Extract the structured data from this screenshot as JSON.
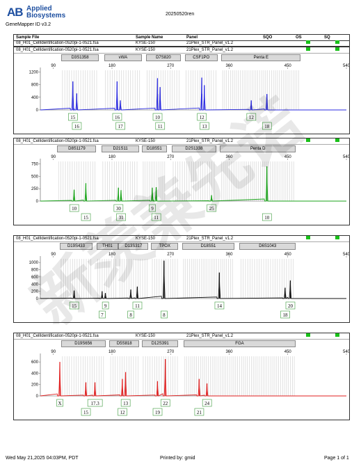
{
  "header": {
    "logo_mark": "AB",
    "logo_line1": "Applied",
    "logo_line2": "Biosystems",
    "software": "GeneMapper ID v3.2",
    "report_title": "20250520ren",
    "columns": [
      "Sample File",
      "Sample Name",
      "Panel",
      "SQO",
      "OS",
      "SQ"
    ],
    "row": {
      "sample_file": "08_H01_CellIdentification-0520pi-1-0521.fsa",
      "sample_name": "KYSE-150",
      "panel": "21Plex_STR_Panel_v1.2"
    }
  },
  "colors": {
    "blue": "#2a2ae0",
    "green": "#1aa31a",
    "black": "#111111",
    "red": "#e01e1e",
    "quality_ok": "#19c019",
    "bin_line": "#cfcfcf",
    "allele_box": "#3a9a3a"
  },
  "chart_data": [
    {
      "type": "line",
      "dye": "blue",
      "sample_file": "08_H01_CellIdentification-0520pi-1-0521.fsa",
      "sample_name": "KYSE-150",
      "panel": "21Plex_STR_Panel_v1.2",
      "markers": [
        {
          "name": "D3S1358",
          "start": 102,
          "end": 160
        },
        {
          "name": "vWA",
          "start": 168,
          "end": 226
        },
        {
          "name": "D7S820",
          "start": 232,
          "end": 286
        },
        {
          "name": "CSF1PO",
          "start": 292,
          "end": 342
        },
        {
          "name": "Penta E",
          "start": 348,
          "end": 470
        }
      ],
      "x_ticks": [
        90,
        180,
        270,
        360,
        450,
        540
      ],
      "xlim": [
        70,
        540
      ],
      "y_ticks": [
        0,
        400,
        800,
        1200
      ],
      "ylim": [
        0,
        1250
      ],
      "peaks": [
        {
          "x": 120,
          "height": 900,
          "allele": "15"
        },
        {
          "x": 126,
          "height": 520,
          "allele": "16"
        },
        {
          "x": 188,
          "height": 900,
          "allele": "16"
        },
        {
          "x": 193,
          "height": 300,
          "allele": "17"
        },
        {
          "x": 250,
          "height": 1000,
          "allele": "10"
        },
        {
          "x": 254,
          "height": 720,
          "allele": "11"
        },
        {
          "x": 318,
          "height": 1020,
          "allele": "12"
        },
        {
          "x": 322,
          "height": 780,
          "allele": "13"
        },
        {
          "x": 394,
          "height": 300,
          "allele": "12"
        },
        {
          "x": 418,
          "height": 500,
          "allele": "18"
        }
      ]
    },
    {
      "type": "line",
      "dye": "green",
      "sample_file": "08_H01_CellIdentification-0520pi-1-0521.fsa",
      "sample_name": "KYSE-150",
      "panel": "21Plex_STR_Panel_v1.2",
      "markers": [
        {
          "name": "D8S1179",
          "start": 96,
          "end": 156
        },
        {
          "name": "D21S11",
          "start": 164,
          "end": 222
        },
        {
          "name": "D18S51",
          "start": 226,
          "end": 264
        },
        {
          "name": "D2S1338",
          "start": 272,
          "end": 340
        },
        {
          "name": "Penta D",
          "start": 346,
          "end": 462
        }
      ],
      "x_ticks": [
        90,
        180,
        270,
        360,
        450,
        540
      ],
      "xlim": [
        70,
        540
      ],
      "y_ticks": [
        0,
        250,
        500,
        750
      ],
      "ylim": [
        0,
        800
      ],
      "peaks": [
        {
          "x": 122,
          "height": 230,
          "allele": "10"
        },
        {
          "x": 140,
          "height": 360,
          "allele": "15"
        },
        {
          "x": 190,
          "height": 270,
          "allele": "30"
        },
        {
          "x": 194,
          "height": 220,
          "allele": "31"
        },
        {
          "x": 242,
          "height": 270,
          "allele": "9"
        },
        {
          "x": 248,
          "height": 280,
          "allele": "11"
        },
        {
          "x": 333,
          "height": 120,
          "allele": "25"
        },
        {
          "x": 418,
          "height": 700,
          "allele": "10"
        }
      ]
    },
    {
      "type": "line",
      "dye": "black",
      "sample_file": "08_H01_CellIdentification-0520pi-1-0521.fsa",
      "sample_name": "KYSE-150",
      "panel": "21Plex_STR_Panel_v1.2",
      "markers": [
        {
          "name": "D19S433",
          "start": 100,
          "end": 150
        },
        {
          "name": "TH01",
          "start": 156,
          "end": 190
        },
        {
          "name": "D13S317",
          "start": 190,
          "end": 236
        },
        {
          "name": "TPOX",
          "start": 240,
          "end": 282
        },
        {
          "name": "D18S51",
          "start": 288,
          "end": 368
        },
        {
          "name": "D6S1043",
          "start": 376,
          "end": 462
        }
      ],
      "x_ticks": [
        90,
        180,
        270,
        360,
        450,
        540
      ],
      "xlim": [
        70,
        540
      ],
      "y_ticks": [
        0,
        200,
        400,
        600,
        800,
        1000
      ],
      "ylim": [
        0,
        1100
      ],
      "peaks": [
        {
          "x": 122,
          "height": 220,
          "allele": "15"
        },
        {
          "x": 165,
          "height": 200,
          "allele": "7"
        },
        {
          "x": 170,
          "height": 150,
          "allele": "9"
        },
        {
          "x": 209,
          "height": 250,
          "allele": "8"
        },
        {
          "x": 219,
          "height": 330,
          "allele": "11"
        },
        {
          "x": 260,
          "height": 1050,
          "allele": "8"
        },
        {
          "x": 345,
          "height": 720,
          "allele": "14"
        },
        {
          "x": 446,
          "height": 300,
          "allele": "18"
        },
        {
          "x": 454,
          "height": 500,
          "allele": "20"
        }
      ]
    },
    {
      "type": "line",
      "dye": "red",
      "sample_file": "08_H01_CellIdentification-0520pi-1-0521.fsa",
      "sample_name": "KYSE-150",
      "panel": "21Plex_STR_Panel_v1.2",
      "markers": [
        {
          "name": "D19S656",
          "start": 102,
          "end": 170
        },
        {
          "name": "D5S818",
          "start": 176,
          "end": 222
        },
        {
          "name": "D12S391",
          "start": 226,
          "end": 282
        },
        {
          "name": "FGA",
          "start": 290,
          "end": 462
        }
      ],
      "x_ticks": [
        90,
        180,
        270,
        360,
        450,
        540
      ],
      "xlim": [
        70,
        540
      ],
      "y_ticks": [
        0,
        200,
        400,
        600
      ],
      "ylim": [
        0,
        700
      ],
      "peaks": [
        {
          "x": 100,
          "height": 600,
          "allele": "X"
        },
        {
          "x": 140,
          "height": 240,
          "allele": "15"
        },
        {
          "x": 154,
          "height": 240,
          "allele": "17.3"
        },
        {
          "x": 196,
          "height": 300,
          "allele": "12"
        },
        {
          "x": 201,
          "height": 420,
          "allele": "13"
        },
        {
          "x": 250,
          "height": 260,
          "allele": "19"
        },
        {
          "x": 262,
          "height": 650,
          "allele": "22"
        },
        {
          "x": 314,
          "height": 300,
          "allele": "21"
        },
        {
          "x": 326,
          "height": 220,
          "allele": "24"
        }
      ]
    }
  ],
  "footer": {
    "date": "Wed May 21,2025 04:03PM, PDT",
    "printed_by": "Printed by: gmid",
    "page": "Page 1 of 1"
  },
  "watermark": "新羡兼先诺"
}
